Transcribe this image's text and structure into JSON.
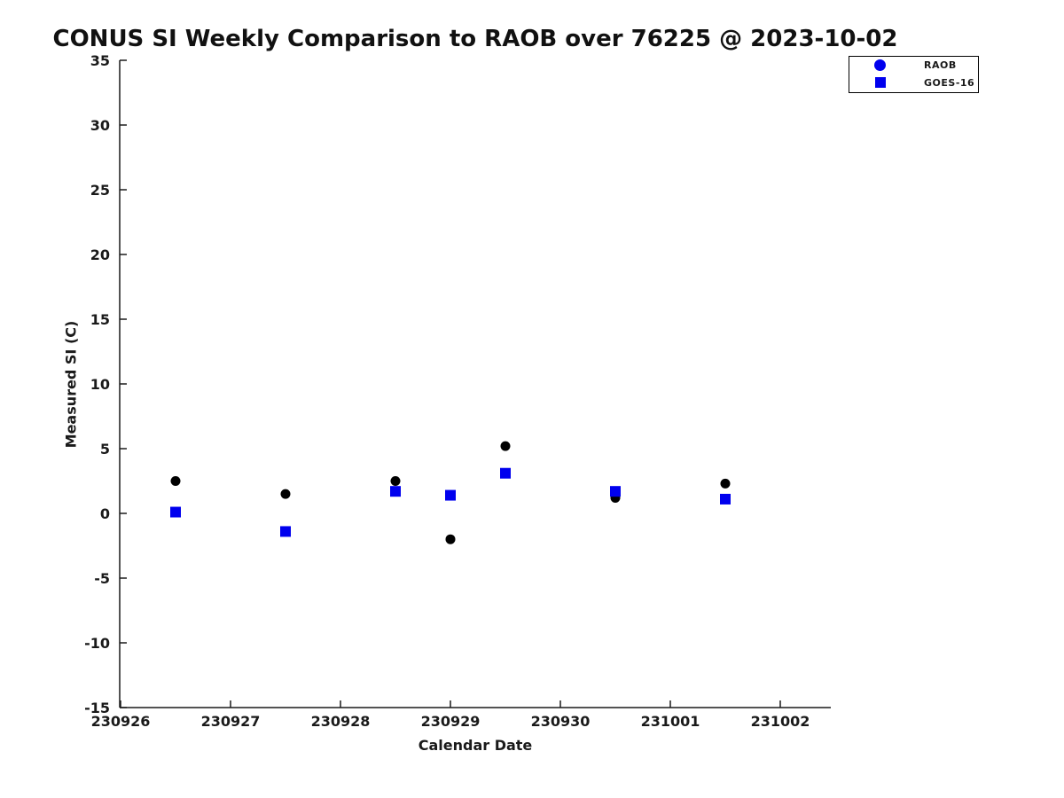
{
  "chart_data": {
    "type": "scatter",
    "title": "CONUS SI Weekly Comparison to RAOB over 76225 @ 2023-10-02",
    "xlabel": "Calendar Date",
    "ylabel": "Measured SI (C)",
    "x_tick_labels": [
      "230926",
      "230927",
      "230928",
      "230929",
      "230930",
      "231001",
      "231002"
    ],
    "x_tick_day_offsets": [
      0,
      1,
      2,
      3,
      4,
      5,
      6
    ],
    "y_ticks": [
      35,
      30,
      25,
      20,
      15,
      10,
      5,
      0,
      -5,
      -10,
      -15
    ],
    "ylim": [
      -15,
      35
    ],
    "grid": false,
    "legend_position": "outside-upper-right",
    "legend": [
      {
        "label": "RAOB",
        "marker": "circle",
        "marker_color": "#0000ee"
      },
      {
        "label": "GOES-16",
        "marker": "square",
        "marker_color": "#0000ee"
      }
    ],
    "series": [
      {
        "name": "RAOB",
        "marker": "circle",
        "color": "#000000",
        "points": [
          {
            "x_day_offset": 0.5,
            "y": 2.5
          },
          {
            "x_day_offset": 1.5,
            "y": 1.5
          },
          {
            "x_day_offset": 2.5,
            "y": 2.5
          },
          {
            "x_day_offset": 3.0,
            "y": -2.0
          },
          {
            "x_day_offset": 3.5,
            "y": 5.2
          },
          {
            "x_day_offset": 4.5,
            "y": 1.2
          },
          {
            "x_day_offset": 5.5,
            "y": 2.3
          }
        ]
      },
      {
        "name": "GOES-16",
        "marker": "square",
        "color": "#0000ee",
        "points": [
          {
            "x_day_offset": 0.5,
            "y": 0.1
          },
          {
            "x_day_offset": 1.5,
            "y": -1.4
          },
          {
            "x_day_offset": 2.5,
            "y": 1.7
          },
          {
            "x_day_offset": 3.0,
            "y": 1.4
          },
          {
            "x_day_offset": 3.5,
            "y": 3.1
          },
          {
            "x_day_offset": 4.5,
            "y": 1.7
          },
          {
            "x_day_offset": 5.5,
            "y": 1.1
          }
        ]
      }
    ]
  }
}
